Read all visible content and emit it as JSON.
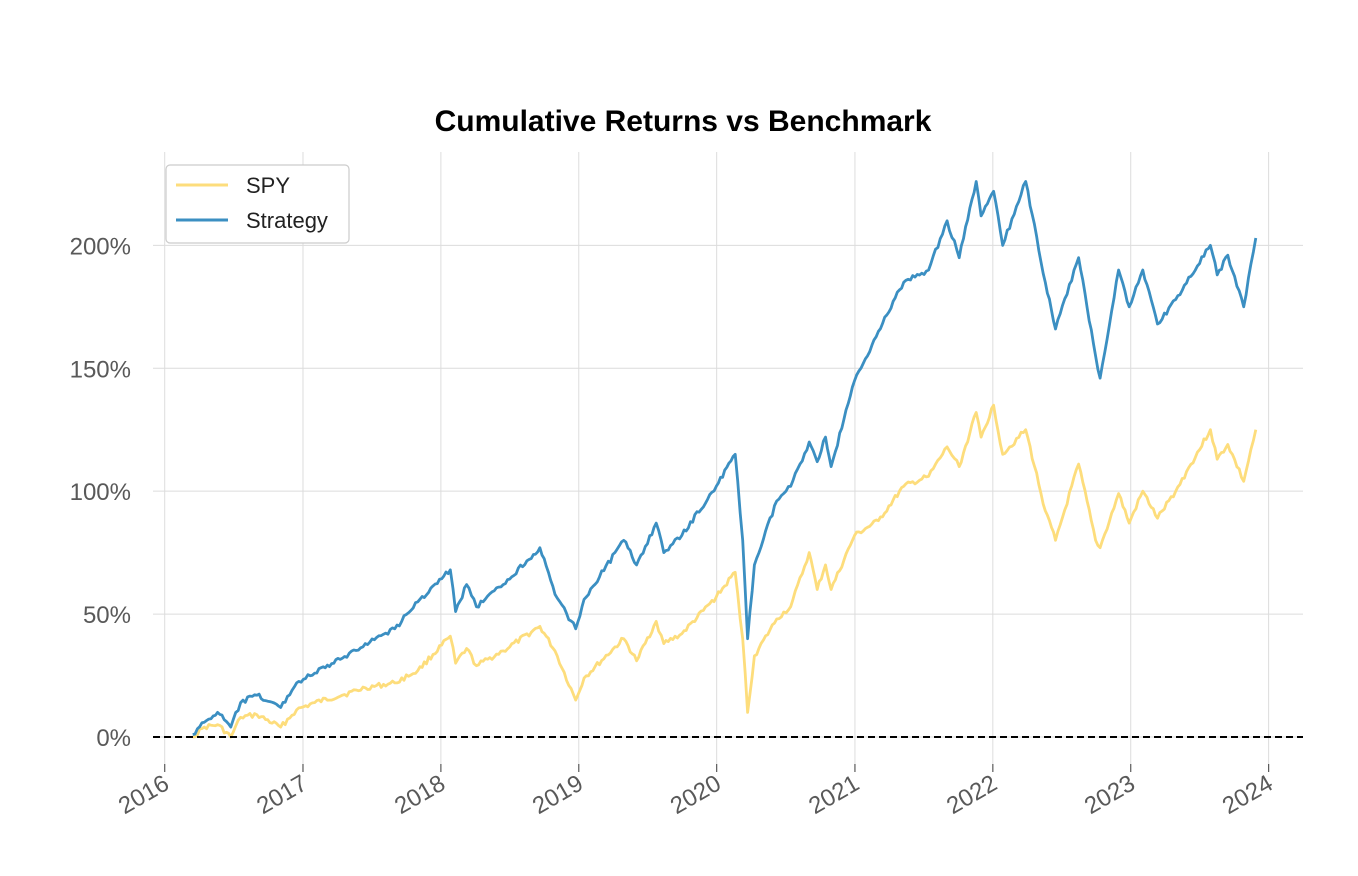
{
  "chart_data": {
    "type": "line",
    "title": "Cumulative Returns vs Benchmark",
    "xlabel": "",
    "ylabel": "",
    "x_ticks": [
      "2016",
      "2017",
      "2018",
      "2019",
      "2020",
      "2021",
      "2022",
      "2023",
      "2024"
    ],
    "y_ticks": [
      "0%",
      "50%",
      "100%",
      "150%",
      "200%"
    ],
    "xlim": [
      "2015-12-01",
      "2024-04-01"
    ],
    "ylim": [
      -11,
      238
    ],
    "grid": true,
    "legend_position": "upper-left",
    "baseline": 0,
    "colors": {
      "SPY": "#fddd7c",
      "Strategy": "#3b8fc2",
      "baseline": "#000000"
    },
    "series": [
      {
        "name": "SPY",
        "points": [
          [
            "2016-03-15",
            0
          ],
          [
            "2016-04-15",
            4
          ],
          [
            "2016-05-20",
            5
          ],
          [
            "2016-06-24",
            0
          ],
          [
            "2016-07-20",
            8
          ],
          [
            "2016-09-01",
            9
          ],
          [
            "2016-11-03",
            4
          ],
          [
            "2016-12-15",
            11
          ],
          [
            "2017-02-01",
            14
          ],
          [
            "2017-04-15",
            17
          ],
          [
            "2017-06-15",
            20
          ],
          [
            "2017-09-01",
            22
          ],
          [
            "2017-11-01",
            27
          ],
          [
            "2018-01-26",
            41
          ],
          [
            "2018-02-09",
            30
          ],
          [
            "2018-03-10",
            36
          ],
          [
            "2018-04-05",
            29
          ],
          [
            "2018-06-15",
            35
          ],
          [
            "2018-09-20",
            45
          ],
          [
            "2018-10-30",
            35
          ],
          [
            "2018-12-24",
            15
          ],
          [
            "2019-01-15",
            24
          ],
          [
            "2019-04-30",
            40
          ],
          [
            "2019-06-03",
            31
          ],
          [
            "2019-07-25",
            47
          ],
          [
            "2019-08-14",
            38
          ],
          [
            "2019-10-01",
            42
          ],
          [
            "2019-12-31",
            57
          ],
          [
            "2020-02-19",
            67
          ],
          [
            "2020-03-10",
            40
          ],
          [
            "2020-03-23",
            10
          ],
          [
            "2020-04-10",
            33
          ],
          [
            "2020-06-08",
            48
          ],
          [
            "2020-07-15",
            53
          ],
          [
            "2020-09-02",
            75
          ],
          [
            "2020-09-23",
            60
          ],
          [
            "2020-10-15",
            70
          ],
          [
            "2020-10-30",
            60
          ],
          [
            "2020-12-31",
            82
          ],
          [
            "2021-03-04",
            88
          ],
          [
            "2021-05-10",
            102
          ],
          [
            "2021-07-15",
            106
          ],
          [
            "2021-09-02",
            118
          ],
          [
            "2021-10-04",
            110
          ],
          [
            "2021-11-18",
            132
          ],
          [
            "2021-12-01",
            122
          ],
          [
            "2022-01-03",
            135
          ],
          [
            "2022-01-27",
            115
          ],
          [
            "2022-03-29",
            125
          ],
          [
            "2022-05-20",
            92
          ],
          [
            "2022-06-16",
            80
          ],
          [
            "2022-08-16",
            111
          ],
          [
            "2022-09-30",
            80
          ],
          [
            "2022-10-12",
            77
          ],
          [
            "2022-11-30",
            99
          ],
          [
            "2022-12-28",
            87
          ],
          [
            "2023-02-02",
            100
          ],
          [
            "2023-03-13",
            89
          ],
          [
            "2023-04-30",
            100
          ],
          [
            "2023-07-31",
            125
          ],
          [
            "2023-08-18",
            113
          ],
          [
            "2023-09-15",
            119
          ],
          [
            "2023-10-27",
            104
          ],
          [
            "2023-11-28",
            125
          ]
        ]
      },
      {
        "name": "Strategy",
        "points": [
          [
            "2016-03-15",
            1
          ],
          [
            "2016-04-15",
            6
          ],
          [
            "2016-05-20",
            10
          ],
          [
            "2016-06-24",
            4
          ],
          [
            "2016-07-20",
            14
          ],
          [
            "2016-09-01",
            17
          ],
          [
            "2016-11-03",
            12
          ],
          [
            "2016-12-15",
            22
          ],
          [
            "2017-02-01",
            26
          ],
          [
            "2017-04-15",
            32
          ],
          [
            "2017-06-15",
            38
          ],
          [
            "2017-09-01",
            44
          ],
          [
            "2017-11-01",
            55
          ],
          [
            "2018-01-26",
            68
          ],
          [
            "2018-02-09",
            51
          ],
          [
            "2018-03-10",
            62
          ],
          [
            "2018-04-05",
            53
          ],
          [
            "2018-06-15",
            62
          ],
          [
            "2018-09-20",
            77
          ],
          [
            "2018-10-30",
            58
          ],
          [
            "2018-12-24",
            44
          ],
          [
            "2019-01-15",
            56
          ],
          [
            "2019-04-30",
            80
          ],
          [
            "2019-06-03",
            70
          ],
          [
            "2019-07-25",
            87
          ],
          [
            "2019-08-14",
            75
          ],
          [
            "2019-10-01",
            82
          ],
          [
            "2019-12-31",
            102
          ],
          [
            "2020-02-19",
            115
          ],
          [
            "2020-03-10",
            80
          ],
          [
            "2020-03-23",
            40
          ],
          [
            "2020-04-10",
            70
          ],
          [
            "2020-06-08",
            96
          ],
          [
            "2020-07-15",
            102
          ],
          [
            "2020-09-02",
            120
          ],
          [
            "2020-09-23",
            112
          ],
          [
            "2020-10-15",
            122
          ],
          [
            "2020-10-30",
            110
          ],
          [
            "2020-12-31",
            145
          ],
          [
            "2021-03-04",
            165
          ],
          [
            "2021-05-10",
            185
          ],
          [
            "2021-07-15",
            190
          ],
          [
            "2021-09-02",
            210
          ],
          [
            "2021-10-04",
            195
          ],
          [
            "2021-11-18",
            226
          ],
          [
            "2021-12-01",
            212
          ],
          [
            "2022-01-03",
            222
          ],
          [
            "2022-01-27",
            200
          ],
          [
            "2022-03-29",
            226
          ],
          [
            "2022-05-20",
            185
          ],
          [
            "2022-06-16",
            166
          ],
          [
            "2022-08-16",
            195
          ],
          [
            "2022-09-30",
            155
          ],
          [
            "2022-10-12",
            146
          ],
          [
            "2022-11-30",
            190
          ],
          [
            "2022-12-28",
            175
          ],
          [
            "2023-02-02",
            190
          ],
          [
            "2023-03-13",
            168
          ],
          [
            "2023-04-30",
            178
          ],
          [
            "2023-07-31",
            200
          ],
          [
            "2023-08-18",
            188
          ],
          [
            "2023-09-15",
            196
          ],
          [
            "2023-10-27",
            175
          ],
          [
            "2023-11-28",
            203
          ]
        ]
      }
    ]
  }
}
